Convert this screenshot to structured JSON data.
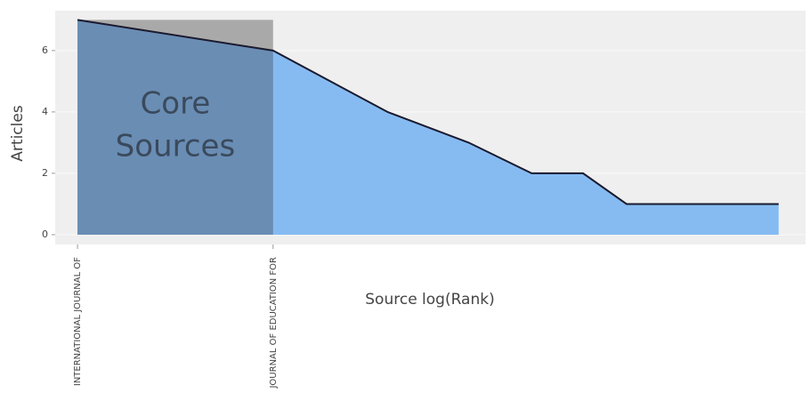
{
  "chart_data": {
    "type": "bradford",
    "x_label": "Source log(Rank)",
    "y_label": "Articles",
    "annotation": [
      "Core",
      "Sources"
    ],
    "x": [
      1,
      2,
      3,
      4,
      5,
      6,
      7,
      8,
      9,
      10,
      11,
      12
    ],
    "categories": [
      "INTERNATIONAL JOURNAL OF",
      "JOURNAL OF EDUCATION FOR",
      null,
      null,
      null,
      null,
      null,
      null,
      null,
      null,
      null,
      null
    ],
    "values": [
      7,
      6,
      4,
      3,
      2,
      2,
      1,
      1,
      1,
      1,
      1,
      1
    ],
    "color": "#86bbf2",
    "core_color": "#6a8db4",
    "core_top_color": "#a9a9a9",
    "line_color": "#1a1a2e",
    "core_ranks": [
      1,
      2
    ],
    "xscale": "log",
    "xlim": [
      0.924,
      13.2
    ],
    "ylim": [
      -0.32,
      7.3
    ],
    "yticks": [
      0,
      2,
      4,
      6
    ],
    "grid": true
  }
}
